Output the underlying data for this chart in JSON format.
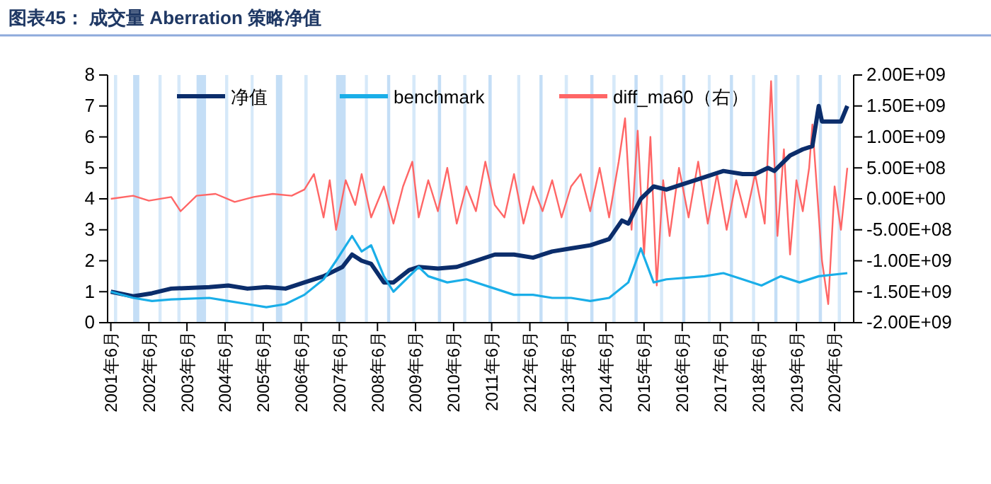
{
  "chart_data": {
    "type": "line",
    "title": "图表45：  成交量 Aberration 策略净值",
    "xlim": [
      "2001-05",
      "2020-12"
    ],
    "xticks": [
      {
        "value": "2001-06",
        "label": "2001年6月"
      },
      {
        "value": "2002-06",
        "label": "2002年6月"
      },
      {
        "value": "2003-06",
        "label": "2003年6月"
      },
      {
        "value": "2004-06",
        "label": "2004年6月"
      },
      {
        "value": "2005-06",
        "label": "2005年6月"
      },
      {
        "value": "2006-06",
        "label": "2006年6月"
      },
      {
        "value": "2007-06",
        "label": "2007年6月"
      },
      {
        "value": "2008-06",
        "label": "2008年6月"
      },
      {
        "value": "2009-06",
        "label": "2009年6月"
      },
      {
        "value": "2010-06",
        "label": "2010年6月"
      },
      {
        "value": "2011-06",
        "label": "2011年6月"
      },
      {
        "value": "2012-06",
        "label": "2012年6月"
      },
      {
        "value": "2013-06",
        "label": "2013年6月"
      },
      {
        "value": "2014-06",
        "label": "2014年6月"
      },
      {
        "value": "2015-06",
        "label": "2015年6月"
      },
      {
        "value": "2016-06",
        "label": "2016年6月"
      },
      {
        "value": "2017-06",
        "label": "2017年6月"
      },
      {
        "value": "2018-06",
        "label": "2018年6月"
      },
      {
        "value": "2019-06",
        "label": "2019年6月"
      },
      {
        "value": "2020-06",
        "label": "2020年6月"
      }
    ],
    "ylim": [
      0,
      8
    ],
    "yticks": [
      0,
      1,
      2,
      3,
      4,
      5,
      6,
      7,
      8
    ],
    "y2lim": [
      -2000000000,
      2000000000
    ],
    "y2ticks": [
      {
        "value": -2000000000,
        "label": "-2.00E+09"
      },
      {
        "value": -1500000000,
        "label": "-1.50E+09"
      },
      {
        "value": -1000000000,
        "label": "-1.00E+09"
      },
      {
        "value": -500000000,
        "label": "-5.00E+08"
      },
      {
        "value": 0,
        "label": "0.00E+00"
      },
      {
        "value": 500000000,
        "label": "5.00E+08"
      },
      {
        "value": 1000000000,
        "label": "1.00E+09"
      },
      {
        "value": 1500000000,
        "label": "1.50E+09"
      },
      {
        "value": 2000000000,
        "label": "2.00E+09"
      }
    ],
    "legend": "top",
    "grid": false,
    "marker": "none",
    "line_style": "solid",
    "bands": [
      {
        "axis": "x",
        "from": "2001-07",
        "to": "2001-08",
        "color": "#d6e9f9"
      },
      {
        "axis": "x",
        "from": "2002-01",
        "to": "2002-03",
        "color": "#c4def6"
      },
      {
        "axis": "x",
        "from": "2002-09",
        "to": "2002-10",
        "color": "#d6e9f9"
      },
      {
        "axis": "x",
        "from": "2003-03",
        "to": "2003-04",
        "color": "#d6e9f9"
      },
      {
        "axis": "x",
        "from": "2003-09",
        "to": "2003-12",
        "color": "#c4def6"
      },
      {
        "axis": "x",
        "from": "2004-06",
        "to": "2004-07",
        "color": "#d6e9f9"
      },
      {
        "axis": "x",
        "from": "2005-02",
        "to": "2005-03",
        "color": "#d6e9f9"
      },
      {
        "axis": "x",
        "from": "2005-10",
        "to": "2005-12",
        "color": "#c4def6"
      },
      {
        "axis": "x",
        "from": "2006-07",
        "to": "2006-08",
        "color": "#d6e9f9"
      },
      {
        "axis": "x",
        "from": "2007-05",
        "to": "2007-08",
        "color": "#c4def6"
      },
      {
        "axis": "x",
        "from": "2008-02",
        "to": "2008-03",
        "color": "#d6e9f9"
      },
      {
        "axis": "x",
        "from": "2008-09",
        "to": "2008-10",
        "color": "#c4def6"
      },
      {
        "axis": "x",
        "from": "2009-05",
        "to": "2009-06",
        "color": "#d6e9f9"
      },
      {
        "axis": "x",
        "from": "2010-01",
        "to": "2010-02",
        "color": "#c4def6"
      },
      {
        "axis": "x",
        "from": "2010-09",
        "to": "2010-10",
        "color": "#d6e9f9"
      },
      {
        "axis": "x",
        "from": "2011-05",
        "to": "2011-06",
        "color": "#c4def6"
      },
      {
        "axis": "x",
        "from": "2012-02",
        "to": "2012-03",
        "color": "#d6e9f9"
      },
      {
        "axis": "x",
        "from": "2012-09",
        "to": "2012-10",
        "color": "#c4def6"
      },
      {
        "axis": "x",
        "from": "2013-05",
        "to": "2013-06",
        "color": "#d6e9f9"
      },
      {
        "axis": "x",
        "from": "2014-01",
        "to": "2014-02",
        "color": "#c4def6"
      },
      {
        "axis": "x",
        "from": "2014-08",
        "to": "2014-09",
        "color": "#d6e9f9"
      },
      {
        "axis": "x",
        "from": "2015-03",
        "to": "2015-04",
        "color": "#c4def6"
      },
      {
        "axis": "x",
        "from": "2015-11",
        "to": "2015-12",
        "color": "#d6e9f9"
      },
      {
        "axis": "x",
        "from": "2016-06",
        "to": "2016-07",
        "color": "#c4def6"
      },
      {
        "axis": "x",
        "from": "2017-02",
        "to": "2017-03",
        "color": "#d6e9f9"
      },
      {
        "axis": "x",
        "from": "2017-09",
        "to": "2017-10",
        "color": "#c4def6"
      },
      {
        "axis": "x",
        "from": "2018-04",
        "to": "2018-05",
        "color": "#d6e9f9"
      },
      {
        "axis": "x",
        "from": "2018-11",
        "to": "2018-12",
        "color": "#c4def6"
      },
      {
        "axis": "x",
        "from": "2019-06",
        "to": "2019-07",
        "color": "#d6e9f9"
      },
      {
        "axis": "x",
        "from": "2020-01",
        "to": "2020-02",
        "color": "#c4def6"
      },
      {
        "axis": "x",
        "from": "2020-07",
        "to": "2020-08",
        "color": "#d6e9f9"
      }
    ],
    "series": [
      {
        "name": "净值",
        "color": "#0b2d6b",
        "x": [
          "2001-06",
          "2002-01",
          "2002-07",
          "2003-01",
          "2004-01",
          "2004-07",
          "2005-01",
          "2005-07",
          "2006-01",
          "2006-07",
          "2007-01",
          "2007-07",
          "2007-10",
          "2008-01",
          "2008-04",
          "2008-08",
          "2008-11",
          "2009-04",
          "2009-07",
          "2010-01",
          "2010-07",
          "2011-01",
          "2011-07",
          "2012-01",
          "2012-07",
          "2013-01",
          "2013-07",
          "2014-01",
          "2014-07",
          "2014-11",
          "2015-01",
          "2015-05",
          "2015-09",
          "2016-01",
          "2016-07",
          "2017-01",
          "2017-07",
          "2018-01",
          "2018-05",
          "2018-09",
          "2018-11",
          "2019-04",
          "2019-08",
          "2019-11",
          "2020-01",
          "2020-02",
          "2020-08",
          "2020-10"
        ],
        "values": [
          1.0,
          0.85,
          0.95,
          1.1,
          1.15,
          1.2,
          1.1,
          1.15,
          1.1,
          1.3,
          1.5,
          1.8,
          2.2,
          2.0,
          1.9,
          1.3,
          1.3,
          1.7,
          1.8,
          1.75,
          1.8,
          2.0,
          2.2,
          2.2,
          2.1,
          2.3,
          2.4,
          2.5,
          2.7,
          3.3,
          3.2,
          4.0,
          4.4,
          4.3,
          4.5,
          4.7,
          4.9,
          4.8,
          4.8,
          5.0,
          4.9,
          5.4,
          5.6,
          5.7,
          7.0,
          6.5,
          6.5,
          7.0
        ]
      },
      {
        "name": "benchmark",
        "color": "#1aaee8",
        "x": [
          "2001-06",
          "2002-01",
          "2002-07",
          "2003-01",
          "2004-01",
          "2004-07",
          "2005-01",
          "2005-07",
          "2006-01",
          "2006-07",
          "2007-01",
          "2007-05",
          "2007-10",
          "2008-01",
          "2008-04",
          "2008-08",
          "2008-11",
          "2009-07",
          "2009-10",
          "2010-04",
          "2010-10",
          "2011-07",
          "2012-01",
          "2012-07",
          "2013-01",
          "2013-07",
          "2014-01",
          "2014-07",
          "2015-01",
          "2015-05",
          "2015-09",
          "2016-01",
          "2017-01",
          "2017-07",
          "2018-01",
          "2018-07",
          "2019-01",
          "2019-07",
          "2020-01",
          "2020-10"
        ],
        "values": [
          1.0,
          0.8,
          0.7,
          0.75,
          0.8,
          0.7,
          0.6,
          0.5,
          0.6,
          0.9,
          1.4,
          2.0,
          2.8,
          2.3,
          2.5,
          1.5,
          1.0,
          1.8,
          1.5,
          1.3,
          1.4,
          1.1,
          0.9,
          0.9,
          0.8,
          0.8,
          0.7,
          0.8,
          1.3,
          2.4,
          1.3,
          1.4,
          1.5,
          1.6,
          1.4,
          1.2,
          1.5,
          1.3,
          1.5,
          1.6
        ]
      },
      {
        "name": "diff_ma60（右）",
        "color": "#ff6666",
        "axis": "y2",
        "x": [
          "2001-06",
          "2002-01",
          "2002-06",
          "2003-01",
          "2003-04",
          "2003-09",
          "2004-03",
          "2004-09",
          "2005-03",
          "2005-09",
          "2006-03",
          "2006-07",
          "2006-10",
          "2007-01",
          "2007-03",
          "2007-05",
          "2007-08",
          "2007-11",
          "2008-01",
          "2008-04",
          "2008-08",
          "2008-11",
          "2009-02",
          "2009-05",
          "2009-07",
          "2009-10",
          "2010-01",
          "2010-04",
          "2010-07",
          "2010-10",
          "2011-01",
          "2011-04",
          "2011-07",
          "2011-10",
          "2012-01",
          "2012-04",
          "2012-07",
          "2012-10",
          "2013-01",
          "2013-04",
          "2013-07",
          "2013-10",
          "2014-01",
          "2014-04",
          "2014-07",
          "2014-10",
          "2014-12",
          "2015-02",
          "2015-04",
          "2015-06",
          "2015-08",
          "2015-10",
          "2015-12",
          "2016-02",
          "2016-05",
          "2016-08",
          "2016-11",
          "2017-02",
          "2017-05",
          "2017-08",
          "2017-11",
          "2018-02",
          "2018-05",
          "2018-08",
          "2018-10",
          "2018-12",
          "2019-02",
          "2019-04",
          "2019-06",
          "2019-08",
          "2019-10",
          "2019-11",
          "2020-02",
          "2020-04",
          "2020-06",
          "2020-08",
          "2020-10"
        ],
        "values": [
          0,
          50000000,
          -30000000,
          30000000,
          -200000000,
          50000000,
          80000000,
          -50000000,
          30000000,
          80000000,
          50000000,
          150000000,
          400000000,
          -300000000,
          300000000,
          -500000000,
          300000000,
          -100000000,
          400000000,
          -300000000,
          200000000,
          -400000000,
          200000000,
          600000000,
          -300000000,
          300000000,
          -200000000,
          500000000,
          -400000000,
          200000000,
          -200000000,
          600000000,
          -100000000,
          -300000000,
          400000000,
          -400000000,
          200000000,
          -200000000,
          300000000,
          -300000000,
          200000000,
          400000000,
          -200000000,
          500000000,
          -300000000,
          600000000,
          1300000000,
          -500000000,
          1100000000,
          -900000000,
          1000000000,
          -1400000000,
          300000000,
          -600000000,
          500000000,
          -300000000,
          600000000,
          -400000000,
          400000000,
          -500000000,
          300000000,
          -300000000,
          400000000,
          -400000000,
          1900000000,
          -600000000,
          800000000,
          -900000000,
          300000000,
          -200000000,
          500000000,
          1200000000,
          -1000000000,
          -1700000000,
          200000000,
          -500000000,
          500000000
        ]
      }
    ]
  }
}
